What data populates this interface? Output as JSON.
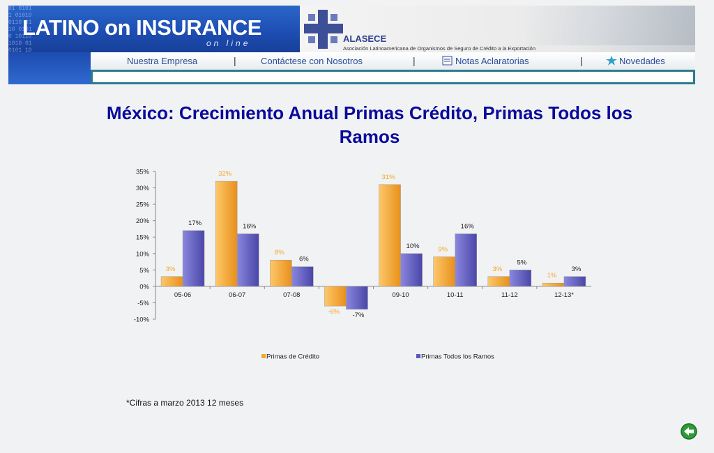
{
  "header": {
    "logo_text": "LATINO on INSURANCE",
    "logo_tagline": "on line",
    "org_name": "ALASECE",
    "org_description": "Asociación Latinoamericana de Organismos de Seguro de Crédito a la Exportación",
    "nav": [
      {
        "label": "Nuestra Empresa"
      },
      {
        "label": "Contáctese con Nosotros"
      },
      {
        "label": "Notas Aclaratorias"
      },
      {
        "label": "Novedades"
      }
    ]
  },
  "colors": {
    "title": "#0a0a9c",
    "series_credit": "#f5a623",
    "series_total": "#5b57c2"
  },
  "chart_data": {
    "type": "bar",
    "title": "México: Crecimiento Anual Primas Crédito, Primas Todos los Ramos",
    "categories": [
      "05-06",
      "06-07",
      "07-08",
      "08-09",
      "09-10",
      "10-11",
      "11-12",
      "12-13*"
    ],
    "series": [
      {
        "name": "Primas de Crédito",
        "values": [
          3,
          32,
          8,
          -6,
          31,
          9,
          3,
          1
        ],
        "labels": [
          "3%",
          "32%",
          "8%",
          "-6%",
          "31%",
          "9%",
          "3%",
          "1%"
        ]
      },
      {
        "name": "Primas Todos los Ramos",
        "values": [
          17,
          16,
          6,
          -7,
          10,
          16,
          5,
          3
        ],
        "labels": [
          "17%",
          "16%",
          "6%",
          "-7%",
          "10%",
          "16%",
          "5%",
          "3%"
        ]
      }
    ],
    "ylim": [
      -10,
      35
    ],
    "yticks": [
      "35%",
      "30%",
      "25%",
      "20%",
      "15%",
      "10%",
      "5%",
      "0%",
      "-5%",
      "-10%"
    ],
    "legend_position": "bottom",
    "grid": false
  },
  "footnote": "*Cifras a marzo 2013 12 meses"
}
